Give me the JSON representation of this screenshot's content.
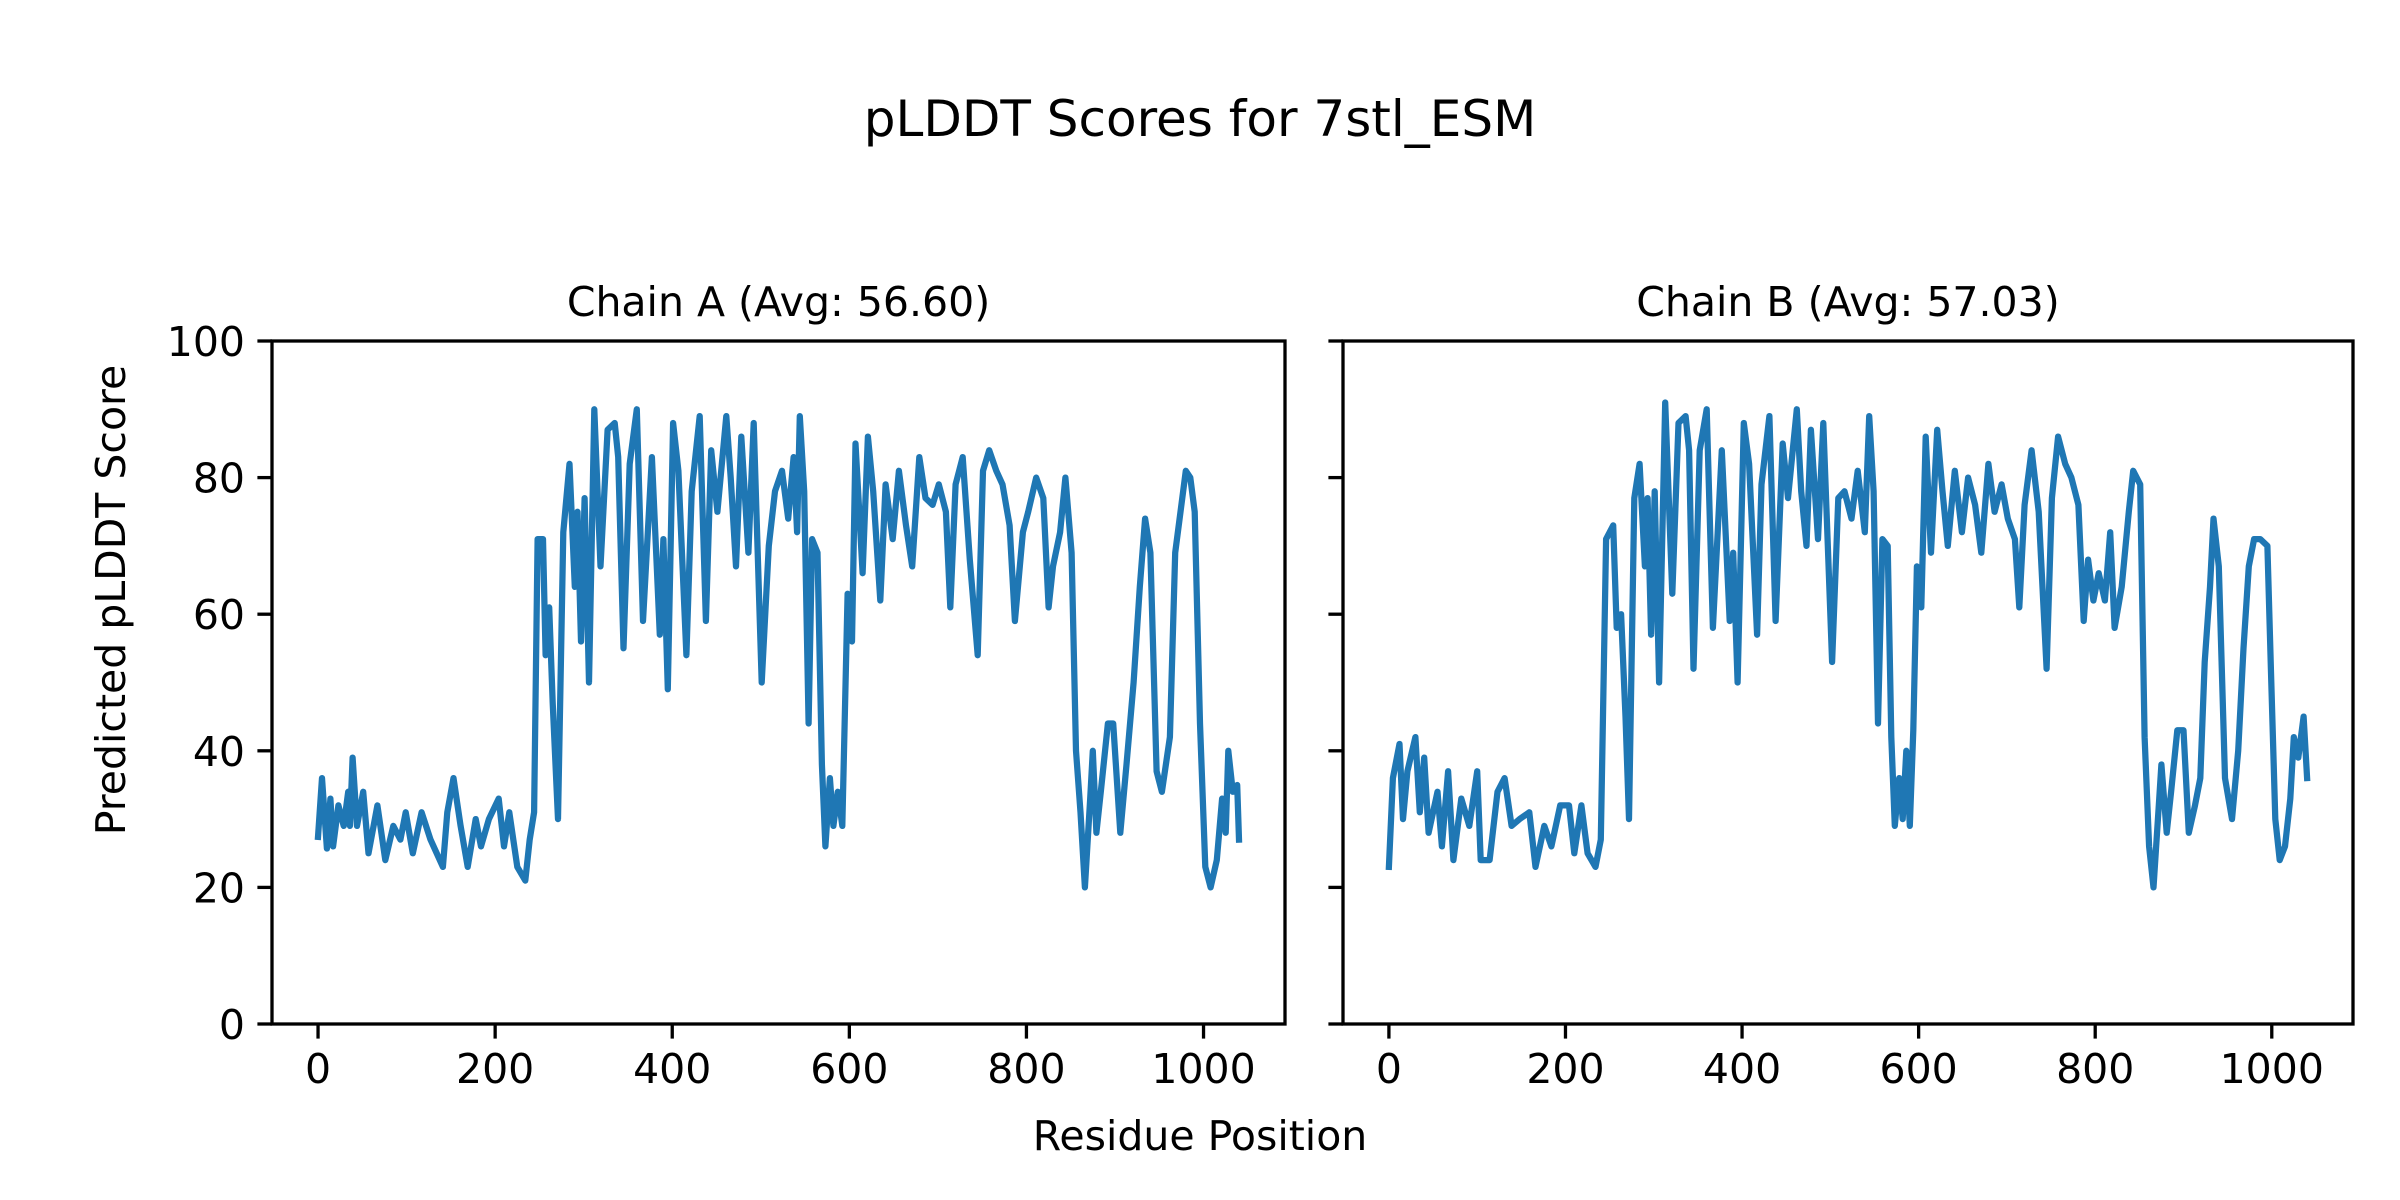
{
  "chart_data": [
    {
      "type": "line",
      "suptitle": "pLDDT Scores for 7stl_ESM",
      "title": "Chain A (Avg: 56.60)",
      "xlabel": "Residue Position",
      "ylabel": "Predicted pLDDT Score",
      "xlim": [
        -52,
        1092
      ],
      "ylim": [
        0,
        100
      ],
      "xticks": [
        "0",
        "200",
        "400",
        "600",
        "800",
        "1000"
      ],
      "yticks": [
        "0",
        "20",
        "40",
        "60",
        "80",
        "100"
      ],
      "grid": false,
      "color": "#1f77b4",
      "x": [
        0,
        4.5,
        10,
        14,
        17,
        23,
        29,
        34,
        36,
        39,
        44,
        51,
        57,
        67,
        76,
        85,
        93,
        99,
        107,
        117,
        127,
        141,
        146,
        153,
        161,
        169,
        178,
        184,
        193,
        204,
        210,
        216,
        225,
        234,
        239,
        244,
        248,
        254,
        257,
        261,
        265,
        271,
        277,
        284,
        290,
        293,
        297,
        301,
        306,
        312,
        319,
        327,
        335,
        339,
        345,
        352,
        360,
        367,
        377,
        386,
        390,
        395,
        401,
        407,
        416,
        422,
        431,
        438,
        444,
        451,
        461,
        466,
        472,
        478,
        486,
        492,
        501,
        509,
        516,
        524,
        531,
        537,
        541,
        544,
        549,
        554,
        558,
        564,
        569,
        573,
        578,
        582,
        587,
        592,
        598,
        603,
        607,
        615,
        621,
        627,
        635,
        641,
        649,
        656,
        664,
        671,
        679,
        686,
        694,
        701,
        709,
        714,
        720,
        728,
        736,
        745,
        751,
        758,
        766,
        773,
        781,
        787,
        796,
        802,
        811,
        819,
        825,
        830,
        838,
        844,
        851,
        856,
        861,
        866,
        872,
        875,
        879,
        884,
        892,
        898,
        906,
        913,
        921,
        928,
        934,
        940,
        947,
        953,
        962,
        968,
        974,
        980,
        985,
        990,
        996,
        1002,
        1008,
        1015,
        1021,
        1025,
        1028,
        1033,
        1038,
        1040
      ],
      "y": [
        27.4,
        36,
        25.7,
        33,
        26,
        32,
        29,
        34,
        29,
        39,
        29,
        34,
        25,
        32,
        24,
        29,
        27,
        31,
        25,
        31,
        27,
        23,
        31,
        36,
        29,
        23,
        30,
        26,
        30,
        33,
        26,
        31,
        23,
        21,
        27,
        31,
        71,
        71,
        54,
        61,
        47,
        30,
        72,
        82,
        64,
        75,
        56,
        77,
        50,
        90,
        67,
        87,
        88,
        83,
        55,
        82,
        90,
        59,
        83,
        57,
        71,
        49,
        88,
        81,
        54,
        78,
        89,
        59,
        84,
        75,
        89,
        80,
        67,
        86,
        69,
        88,
        50,
        70,
        78,
        81,
        74,
        83,
        72,
        89,
        78,
        44,
        71,
        69,
        38,
        26,
        36,
        29,
        34,
        29,
        63,
        56,
        85,
        66,
        86,
        78,
        62,
        79,
        71,
        81,
        73,
        67,
        83,
        77,
        76,
        79,
        75,
        61,
        79,
        83,
        68,
        54,
        81,
        84,
        81,
        79,
        73,
        59,
        72,
        75,
        80,
        77,
        61,
        67,
        72,
        80,
        69,
        40,
        31,
        20,
        33,
        40,
        28,
        34,
        44,
        44,
        28,
        38,
        50,
        64,
        74,
        69,
        37,
        34,
        42,
        69,
        75,
        81,
        80,
        75,
        44,
        23,
        20,
        24,
        33,
        28,
        40,
        34,
        35,
        27
      ]
    },
    {
      "type": "line",
      "title": "Chain B (Avg: 57.03)",
      "xlim": [
        -52,
        1092
      ],
      "ylim": [
        0,
        100
      ],
      "xticks": [
        "0",
        "200",
        "400",
        "600",
        "800",
        "1000"
      ],
      "grid": false,
      "color": "#1f77b4",
      "x": [
        0,
        4.5,
        12,
        16,
        21,
        30,
        35,
        40,
        45,
        55,
        60,
        67,
        73,
        82,
        91,
        100,
        104,
        114,
        123,
        131,
        139,
        148,
        159,
        166,
        176,
        184,
        194,
        204,
        210,
        218,
        225,
        234,
        240,
        246,
        254,
        258,
        263,
        268,
        272,
        278,
        284,
        290,
        293,
        297,
        301,
        306,
        313,
        321,
        328,
        336,
        340,
        345,
        352,
        360,
        367,
        377,
        386,
        390,
        395,
        402,
        408,
        417,
        422,
        431,
        438,
        446,
        452,
        462,
        467,
        473,
        478,
        486,
        492,
        502,
        509,
        516,
        524,
        531,
        539,
        544,
        549,
        554,
        559,
        565,
        569,
        573,
        578,
        582,
        586,
        590,
        594,
        598,
        603,
        608,
        614,
        621,
        627,
        633,
        641,
        649,
        656,
        664,
        671,
        679,
        686,
        694,
        701,
        709,
        714,
        720,
        728,
        736,
        745,
        751,
        758,
        766,
        773,
        781,
        787,
        792,
        798,
        804,
        811,
        817,
        822,
        830,
        838,
        843,
        851,
        856,
        861,
        866,
        872,
        875,
        881,
        886,
        893,
        900,
        906,
        913,
        919,
        924,
        930,
        934,
        940,
        947,
        955,
        962,
        968,
        974,
        980,
        987,
        995,
        999,
        1004,
        1009,
        1015,
        1021,
        1025,
        1030,
        1036,
        1040
      ],
      "y": [
        23,
        36,
        41,
        30,
        37,
        42,
        31,
        39,
        28,
        34,
        26,
        37,
        24,
        33,
        29,
        37,
        24,
        24,
        34,
        36,
        29,
        30,
        31,
        23,
        29,
        26,
        32,
        32,
        25,
        32,
        25,
        23,
        27,
        71,
        73,
        58,
        60,
        45,
        30,
        77,
        82,
        67,
        77,
        57,
        78,
        50,
        91,
        63,
        88,
        89,
        84,
        52,
        84,
        90,
        58,
        84,
        59,
        69,
        50,
        88,
        82,
        57,
        79,
        89,
        59,
        85,
        77,
        90,
        78,
        70,
        87,
        71,
        88,
        53,
        77,
        78,
        74,
        81,
        72,
        89,
        78,
        44,
        71,
        70,
        42,
        29,
        36,
        30,
        40,
        29,
        43,
        67,
        61,
        86,
        69,
        87,
        78,
        70,
        81,
        72,
        80,
        76,
        69,
        82,
        75,
        79,
        74,
        71,
        61,
        76,
        84,
        75,
        52,
        77,
        86,
        82,
        80,
        76,
        59,
        68,
        62,
        66,
        62,
        72,
        58,
        64,
        75,
        81,
        79,
        42,
        26,
        20,
        32,
        38,
        28,
        34,
        43,
        43,
        28,
        32,
        36,
        53,
        64,
        74,
        67,
        36,
        30,
        40,
        55,
        67,
        71,
        71,
        70,
        52,
        30,
        24,
        26,
        33,
        42,
        39,
        45,
        36
      ]
    }
  ]
}
